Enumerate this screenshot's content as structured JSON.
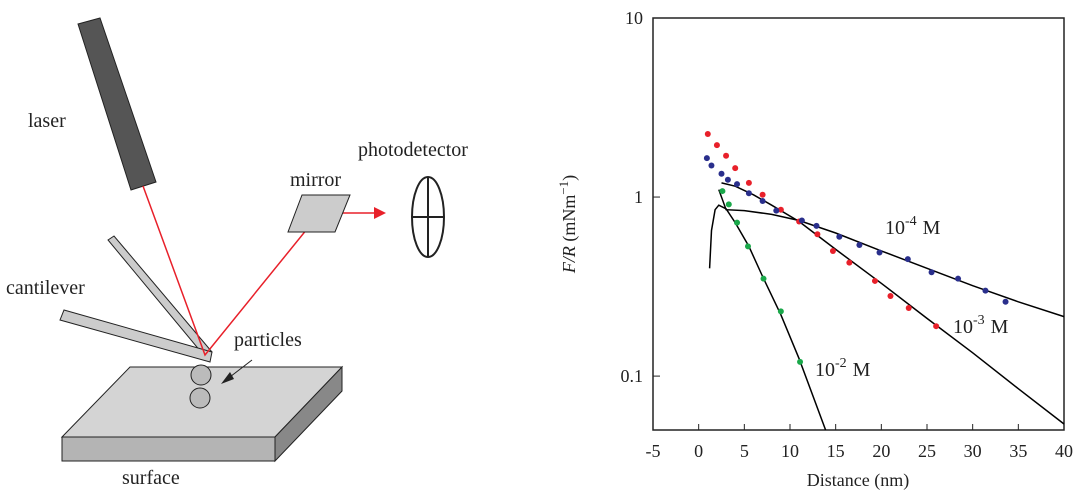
{
  "diagram": {
    "labels": [
      "laser",
      "photodetector",
      "mirror",
      "cantilever",
      "particles",
      "surface"
    ]
  },
  "chart_data": {
    "type": "scatter",
    "xlabel": "Distance (nm)",
    "ylabel": {
      "italic": "F/R",
      "text": " (mNm",
      "sup": "−1",
      "suffix": ")"
    },
    "xlim": [
      -5,
      40
    ],
    "xticks": [
      -5,
      0,
      5,
      10,
      15,
      20,
      25,
      30,
      35,
      40
    ],
    "ylim": [
      0.05,
      10
    ],
    "yticks": [
      0.1,
      1,
      10
    ],
    "ylog": true,
    "series": [
      {
        "color": "#e8202a",
        "x": [
          1,
          2,
          3,
          4,
          5.5,
          7,
          9,
          11,
          13,
          14.7,
          16.5,
          19.3,
          21,
          23,
          26
        ],
        "values": [
          2.25,
          1.95,
          1.7,
          1.45,
          1.2,
          1.03,
          0.85,
          0.73,
          0.62,
          0.5,
          0.43,
          0.34,
          0.28,
          0.24,
          0.19
        ]
      },
      {
        "color": "#2a2f8c",
        "x": [
          0.9,
          1.4,
          2.5,
          3.2,
          4.2,
          5.5,
          7,
          8.5,
          11.3,
          12.9,
          15.4,
          17.6,
          19.8,
          22.9,
          25.5,
          28.4,
          31.4,
          33.6
        ],
        "values": [
          1.65,
          1.5,
          1.35,
          1.25,
          1.18,
          1.05,
          0.95,
          0.84,
          0.74,
          0.69,
          0.6,
          0.54,
          0.49,
          0.45,
          0.38,
          0.35,
          0.3,
          0.26
        ]
      },
      {
        "color": "#1aa84a",
        "x": [
          2.6,
          3.3,
          4.2,
          5.4,
          7.1,
          9,
          11.1
        ],
        "values": [
          1.08,
          0.91,
          0.72,
          0.53,
          0.35,
          0.23,
          0.12
        ]
      }
    ],
    "fits": [
      {
        "color": "#000000",
        "x": [
          2.2,
          3,
          5,
          8,
          11,
          15,
          20,
          25,
          30,
          35,
          40
        ],
        "values": [
          1.1,
          0.85,
          0.84,
          0.8,
          0.74,
          0.63,
          0.5,
          0.4,
          0.32,
          0.26,
          0.215
        ]
      },
      {
        "color": "#000000",
        "x": [
          2.5,
          4,
          6,
          8,
          11,
          15,
          20,
          25,
          30,
          35,
          40
        ],
        "values": [
          1.2,
          1.15,
          1.03,
          0.9,
          0.73,
          0.51,
          0.33,
          0.21,
          0.135,
          0.085,
          0.054
        ]
      },
      {
        "color": "#000000",
        "x": [
          1.2,
          1.4,
          1.8,
          2.2,
          3,
          4,
          5.5,
          7,
          9,
          11,
          13.9
        ],
        "values": [
          0.4,
          0.65,
          0.85,
          0.9,
          0.86,
          0.72,
          0.53,
          0.36,
          0.22,
          0.125,
          0.05
        ]
      }
    ],
    "annotations": [
      {
        "base": "10",
        "sup": "-4",
        "unit": "M"
      },
      {
        "base": "10",
        "sup": "-3",
        "unit": "M"
      },
      {
        "base": "10",
        "sup": "-2",
        "unit": "M"
      }
    ]
  }
}
